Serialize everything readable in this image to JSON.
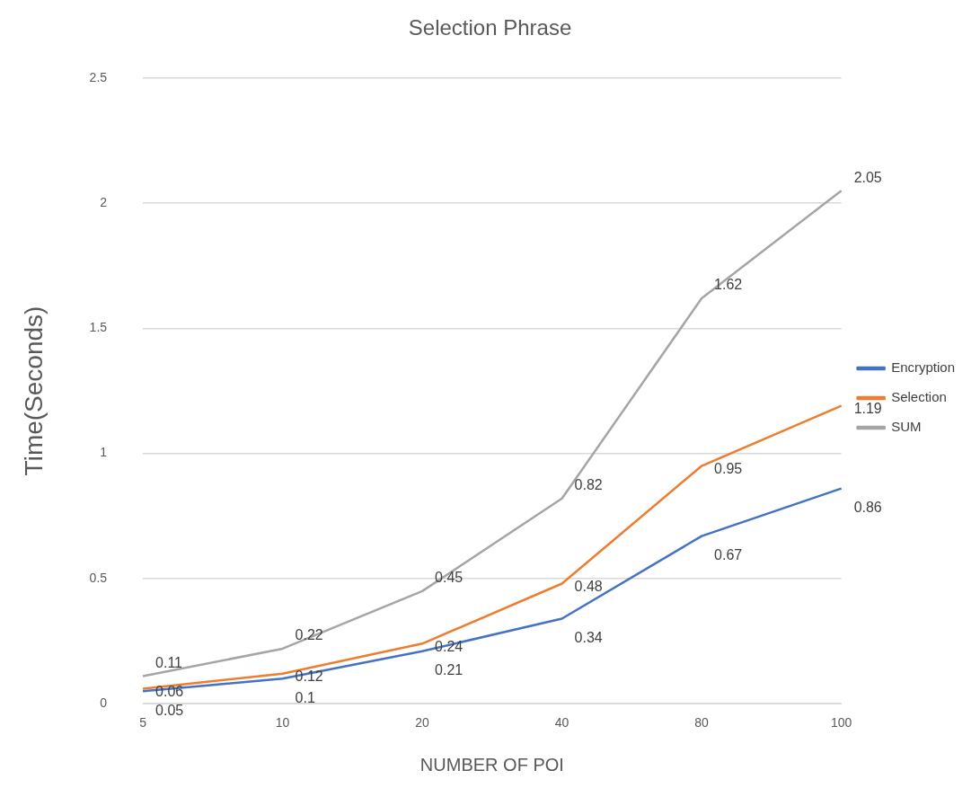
{
  "chart_data": {
    "type": "line",
    "title": "Selection Phrase",
    "xlabel": "NUMBER OF POI",
    "ylabel": "Time(Seconds)",
    "categories": [
      "5",
      "10",
      "20",
      "40",
      "80",
      "100"
    ],
    "series": [
      {
        "name": "Encryption",
        "color": "#4472c4",
        "values": [
          0.05,
          0.1,
          0.21,
          0.34,
          0.67,
          0.86
        ]
      },
      {
        "name": "Selection",
        "color": "#ed7d31",
        "values": [
          0.06,
          0.12,
          0.24,
          0.48,
          0.95,
          1.19
        ]
      },
      {
        "name": "SUM",
        "color": "#a5a5a5",
        "values": [
          0.11,
          0.22,
          0.45,
          0.82,
          1.62,
          2.05
        ]
      }
    ],
    "ylim": [
      0,
      2.5
    ],
    "yticks": [
      0,
      0.5,
      1,
      1.5,
      2,
      2.5
    ],
    "grid": "y",
    "legend": "right",
    "data_labels": true,
    "marker": "none",
    "line_style": "solid"
  }
}
